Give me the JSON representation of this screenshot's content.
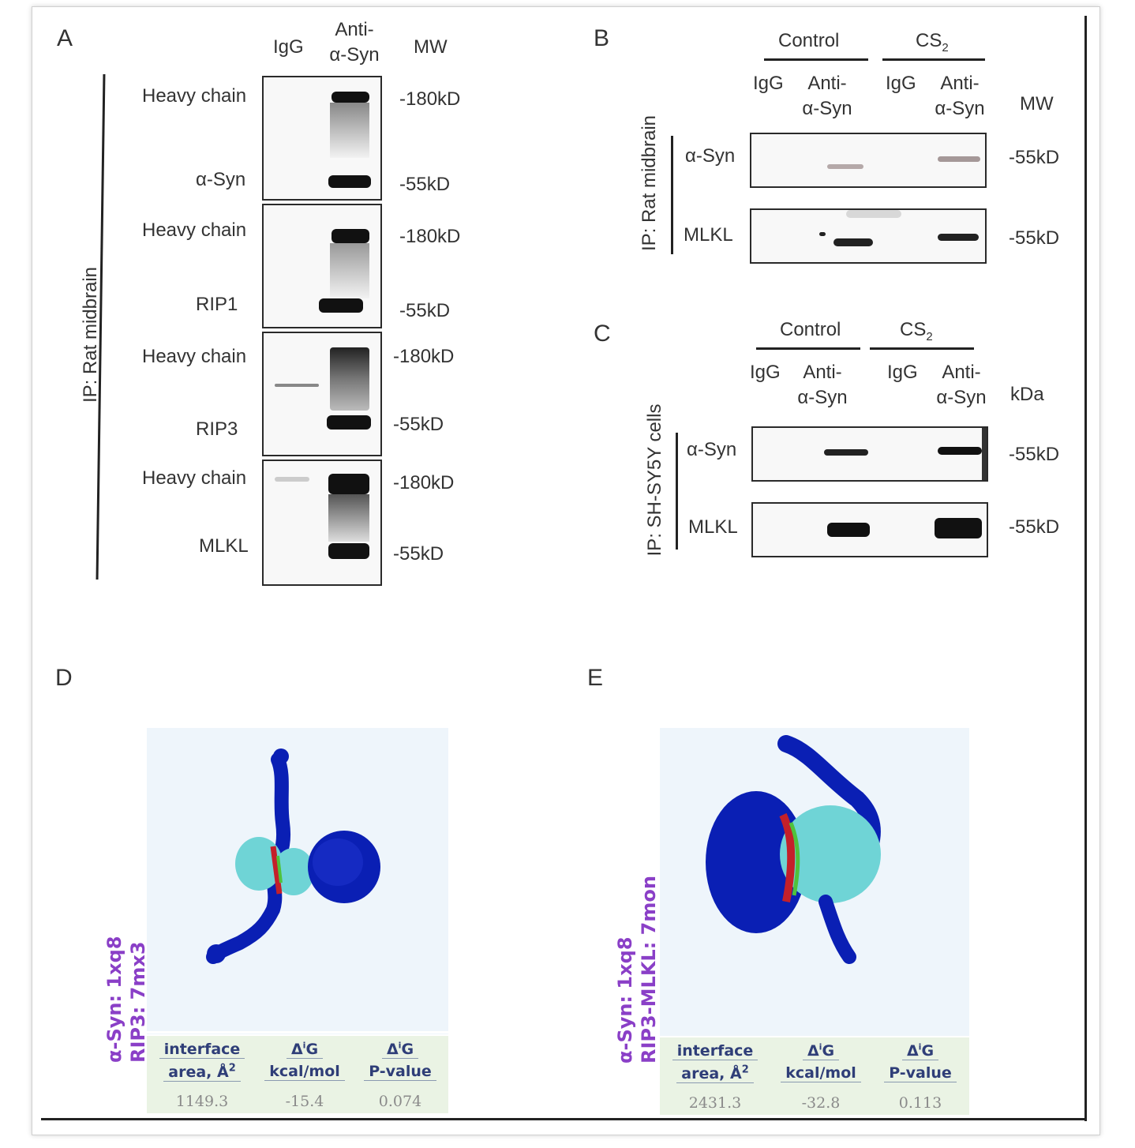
{
  "panels": {
    "A": {
      "label": "A",
      "col_igg": "IgG",
      "col_anti": "Anti-\nα-Syn",
      "col_mw": "MW",
      "ip_label": "IP: Rat midbrain",
      "rows": [
        {
          "top": "Heavy chain",
          "bottom": "α-Syn",
          "mw_top": "-180kD",
          "mw_bottom": "-55kD"
        },
        {
          "top": "Heavy chain",
          "bottom": "RIP1",
          "mw_top": "-180kD",
          "mw_bottom": "-55kD"
        },
        {
          "top": "Heavy chain",
          "bottom": "RIP3",
          "mw_top": "-180kD",
          "mw_bottom": "-55kD"
        },
        {
          "top": "Heavy chain",
          "bottom": "MLKL",
          "mw_top": "-180kD",
          "mw_bottom": "-55kD"
        }
      ]
    },
    "B": {
      "label": "B",
      "group_control": "Control",
      "group_cs2": "CS",
      "group_cs2_sub": "2",
      "col_igg": "IgG",
      "col_anti": "Anti-\nα-Syn",
      "col_mw": "MW",
      "ip_label": "IP: Rat midbrain",
      "rows": [
        {
          "label": "α-Syn",
          "mw": "-55kD"
        },
        {
          "label": "MLKL",
          "mw": "-55kD"
        }
      ]
    },
    "C": {
      "label": "C",
      "group_control": "Control",
      "group_cs2": "CS",
      "group_cs2_sub": "2",
      "col_igg": "IgG",
      "col_anti": "Anti-\nα-Syn",
      "col_mw": "kDa",
      "ip_label": "IP: SH-SY5Y cells",
      "rows": [
        {
          "label": "α-Syn",
          "mw": "-55kD"
        },
        {
          "label": "MLKL",
          "mw": "-55kD"
        }
      ]
    },
    "D": {
      "label": "D",
      "side_line1": "α-Syn: 1xq8",
      "side_line2": "RIP3: 7mx3",
      "table": {
        "h1a": "interface",
        "h1b": "area, Å",
        "h2a": "Δ",
        "h2sup": "i",
        "h2b": "G",
        "h2c": "kcal/mol",
        "h3a": "Δ",
        "h3sup": "i",
        "h3b": "G",
        "h3c": "P-value",
        "v1": "1149.3",
        "v2": "-15.4",
        "v3": "0.074"
      }
    },
    "E": {
      "label": "E",
      "side_line1": "α-Syn: 1xq8",
      "side_line2": "RIP3-MLKL: 7mon",
      "table": {
        "h1a": "interface",
        "h1b": "area, Å",
        "h2a": "Δ",
        "h2sup": "i",
        "h2b": "G",
        "h2c": "kcal/mol",
        "h3a": "Δ",
        "h3sup": "i",
        "h3b": "G",
        "h3c": "P-value",
        "v1": "2431.3",
        "v2": "-32.8",
        "v3": "0.113"
      }
    }
  },
  "colors": {
    "protein_dark": "#0a1fb4",
    "protein_light": "#6fd4d6",
    "interface_red": "#c4202a",
    "interface_green": "#4fc23c",
    "label_purple": "#8a3fc7"
  }
}
